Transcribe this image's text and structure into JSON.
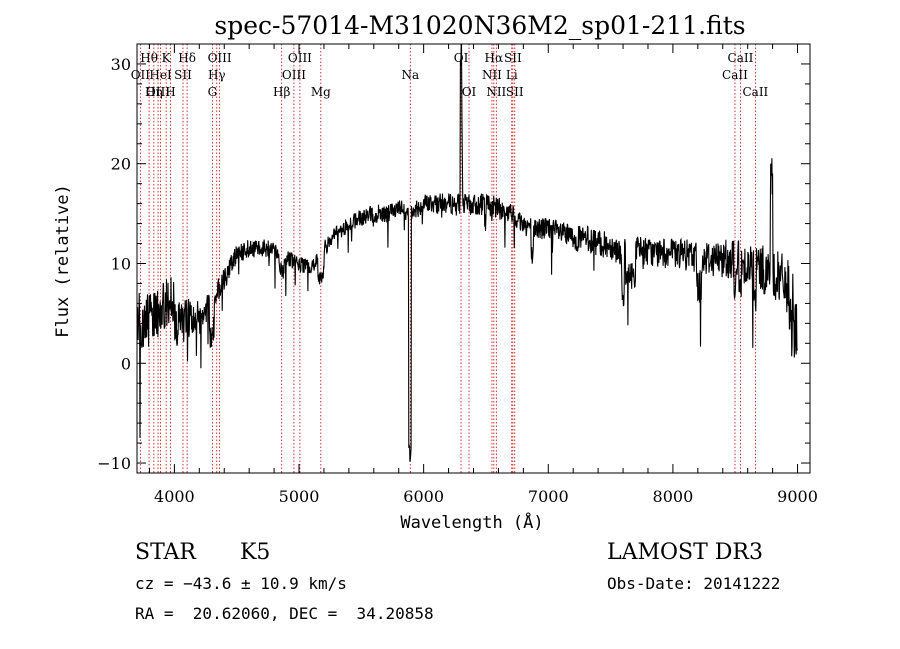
{
  "chart_data": {
    "type": "line",
    "title": "spec-57014-M31020N36M2_sp01-211.fits",
    "xlabel": "Wavelength (Å)",
    "ylabel": "Flux (relative)",
    "xlim": [
      3700,
      9100
    ],
    "ylim": [
      -11,
      32
    ],
    "x_ticks": [
      4000,
      5000,
      6000,
      7000,
      8000,
      9000
    ],
    "y_ticks": [
      -10,
      0,
      10,
      20,
      30
    ],
    "x_tick_labels": [
      "4000",
      "5000",
      "6000",
      "7000",
      "8000",
      "9000"
    ],
    "y_tick_labels": [
      "−10",
      "0",
      "10",
      "20",
      "30"
    ],
    "grid": false,
    "line_color": "#000000",
    "marker_color": "#cc0000",
    "continuum": [
      [
        3700,
        1.0
      ],
      [
        3800,
        1.5
      ],
      [
        3900,
        2.5
      ],
      [
        4000,
        3.5
      ],
      [
        4100,
        4.5
      ],
      [
        4200,
        4.8
      ],
      [
        4300,
        6.0
      ],
      [
        4400,
        8.5
      ],
      [
        4500,
        11.0
      ],
      [
        4600,
        11.5
      ],
      [
        4700,
        11.6
      ],
      [
        4800,
        11.5
      ],
      [
        4900,
        10.5
      ],
      [
        5000,
        10.0
      ],
      [
        5100,
        9.5
      ],
      [
        5200,
        11.5
      ],
      [
        5300,
        13.0
      ],
      [
        5400,
        14.0
      ],
      [
        5500,
        14.5
      ],
      [
        5600,
        15.0
      ],
      [
        5700,
        15.0
      ],
      [
        5800,
        15.5
      ],
      [
        5900,
        15.0
      ],
      [
        6000,
        16.0
      ],
      [
        6100,
        16.0
      ],
      [
        6200,
        16.0
      ],
      [
        6300,
        16.0
      ],
      [
        6400,
        15.8
      ],
      [
        6500,
        16.0
      ],
      [
        6600,
        15.5
      ],
      [
        6700,
        15.0
      ],
      [
        6800,
        14.0
      ],
      [
        6900,
        13.5
      ],
      [
        7000,
        13.5
      ],
      [
        7100,
        13.0
      ],
      [
        7200,
        12.5
      ],
      [
        7300,
        12.5
      ],
      [
        7400,
        12.0
      ],
      [
        7500,
        11.8
      ],
      [
        7600,
        11.0
      ],
      [
        7700,
        11.5
      ],
      [
        7800,
        11.2
      ],
      [
        7900,
        11.0
      ],
      [
        8000,
        11.0
      ],
      [
        8100,
        10.8
      ],
      [
        8200,
        10.8
      ],
      [
        8300,
        10.5
      ],
      [
        8400,
        10.5
      ],
      [
        8500,
        10.5
      ],
      [
        8600,
        10.0
      ],
      [
        8700,
        9.5
      ],
      [
        8800,
        9.0
      ],
      [
        8900,
        8.0
      ],
      [
        9000,
        6.0
      ]
    ],
    "features": [
      [
        3700,
        4000,
        3.0
      ],
      [
        4280,
        4320,
        -3.0
      ],
      [
        4840,
        4880,
        -1.5
      ],
      [
        5150,
        5200,
        -2.5
      ],
      [
        5880,
        5900,
        -24.0
      ],
      [
        6295,
        6305,
        14.0
      ],
      [
        6300,
        6310,
        9.0
      ],
      [
        6490,
        6500,
        -2.0
      ],
      [
        6860,
        6880,
        -3.0
      ],
      [
        7590,
        7610,
        -4.0
      ],
      [
        7620,
        7700,
        -2.5
      ],
      [
        8190,
        8230,
        -3.0
      ],
      [
        8490,
        8510,
        -2.5
      ],
      [
        8530,
        8550,
        -3.0
      ],
      [
        8650,
        8670,
        -3.5
      ],
      [
        8780,
        8800,
        9.0
      ],
      [
        8930,
        8960,
        -3.5
      ],
      [
        8970,
        9000,
        -3.0
      ]
    ],
    "noise": [
      [
        3700,
        3.0
      ],
      [
        4000,
        2.5
      ],
      [
        4200,
        1.5
      ],
      [
        4500,
        1.0
      ],
      [
        5000,
        0.8
      ],
      [
        6000,
        1.0
      ],
      [
        7000,
        1.2
      ],
      [
        8000,
        1.5
      ],
      [
        8500,
        2.0
      ],
      [
        9000,
        3.0
      ]
    ],
    "lines": [
      {
        "label": "Hθ",
        "x": 3797,
        "row": 0
      },
      {
        "label": "OII",
        "x": 3727,
        "row": 1
      },
      {
        "label": "OIII",
        "x": 3869,
        "row": 2
      },
      {
        "label": "Hη",
        "x": 3835,
        "row": 2
      },
      {
        "label": "K",
        "x": 3934,
        "row": 0
      },
      {
        "label": "HeI",
        "x": 3889,
        "row": 1
      },
      {
        "label": "SII",
        "x": 4069,
        "row": 1
      },
      {
        "label": "H",
        "x": 3969,
        "row": 2
      },
      {
        "label": "Hδ",
        "x": 4102,
        "row": 0
      },
      {
        "label": "OIII",
        "x": 4363,
        "row": 0
      },
      {
        "label": "Hγ",
        "x": 4340,
        "row": 1
      },
      {
        "label": "G",
        "x": 4305,
        "row": 2
      },
      {
        "label": "OIII",
        "x": 5007,
        "row": 0
      },
      {
        "label": "OIII",
        "x": 4959,
        "row": 1
      },
      {
        "label": "Hβ",
        "x": 4861,
        "row": 2
      },
      {
        "label": "Mg",
        "x": 5175,
        "row": 2
      },
      {
        "label": "Na",
        "x": 5893,
        "row": 1
      },
      {
        "label": "OI",
        "x": 6300,
        "row": 0
      },
      {
        "label": "OI",
        "x": 6364,
        "row": 2
      },
      {
        "label": "Hα",
        "x": 6563,
        "row": 0
      },
      {
        "label": "NII",
        "x": 6548,
        "row": 1
      },
      {
        "label": "NII",
        "x": 6583,
        "row": 2
      },
      {
        "label": "SII",
        "x": 6716,
        "row": 0
      },
      {
        "label": "Li",
        "x": 6707,
        "row": 1
      },
      {
        "label": "SII",
        "x": 6731,
        "row": 2
      },
      {
        "label": "CaII",
        "x": 8498,
        "row": 1
      },
      {
        "label": "CaII",
        "x": 8542,
        "row": 0
      },
      {
        "label": "CaII",
        "x": 8662,
        "row": 2
      }
    ]
  },
  "info": {
    "class_label": "STAR",
    "subclass": "K5",
    "cz": "cz = −43.6 ± 10.9 km/s",
    "coords": "RA =  20.62060, DEC =  34.20858",
    "survey": "LAMOST DR3",
    "obs_date": "Obs-Date: 20141222"
  }
}
